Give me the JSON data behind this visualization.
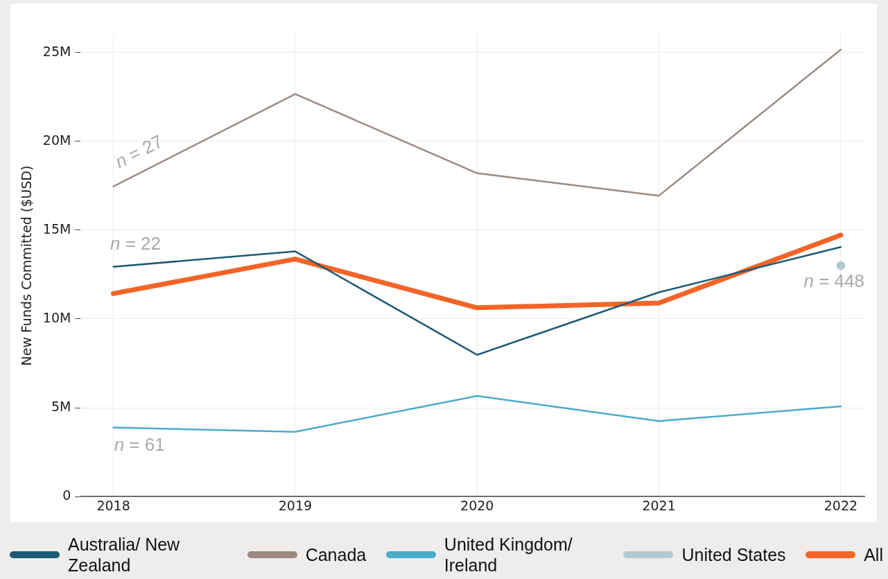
{
  "chart_data": {
    "type": "line",
    "ylabel": "New Funds Committed ($USD)",
    "x": [
      2018,
      2019,
      2020,
      2021,
      2022
    ],
    "xlim": [
      2017.82,
      2022.13
    ],
    "xticks": [
      2018,
      2019,
      2020,
      2021,
      2022
    ],
    "ylim": [
      0,
      26
    ],
    "yticks": [
      0,
      {
        "value": 5,
        "label": "5M"
      },
      {
        "value": 10,
        "label": "10M"
      },
      {
        "value": 15,
        "label": "15M"
      },
      {
        "value": 20,
        "label": "20M"
      },
      {
        "value": 25,
        "label": "25M"
      }
    ],
    "grid": true,
    "legend": "bottom",
    "marker": "none",
    "line_style": "solid",
    "series": [
      {
        "name": "Australia/ New Zealand",
        "color": "#1d5a73",
        "values": [
          12.94,
          13.8,
          7.98,
          11.5,
          14.05
        ]
      },
      {
        "name": "Canada",
        "color": "#9b8a83",
        "values": [
          17.46,
          22.66,
          18.2,
          16.94,
          25.16
        ]
      },
      {
        "name": "United Kingdom/ Ireland",
        "color": "#4aabcb",
        "values": [
          3.89,
          3.65,
          5.67,
          4.25,
          5.08
        ]
      },
      {
        "name": "United States",
        "color": "#b4c7d0",
        "marker": "circle",
        "values": [
          null,
          null,
          null,
          null,
          13.0
        ]
      },
      {
        "name": "All",
        "color": "#f26427",
        "values": [
          11.43,
          13.37,
          10.63,
          10.9,
          14.72
        ]
      }
    ],
    "annotations": [
      "n = 27",
      "n = 22",
      "n = 61",
      "n = 448"
    ]
  }
}
